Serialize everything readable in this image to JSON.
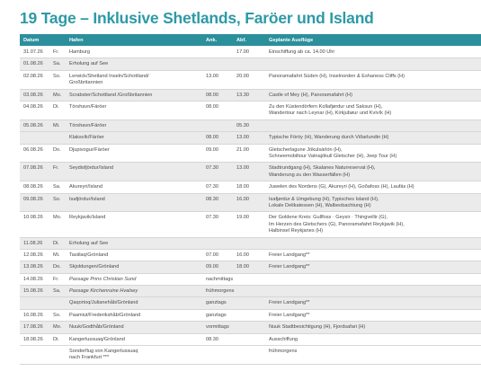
{
  "title": "19 Tage – Inklusive Shetlands, Faröer und Island",
  "header": {
    "date": "Datum",
    "port": "Hafen",
    "arr": "Ank.",
    "dep": "Abf.",
    "excursions": "Geplante Ausflüge"
  },
  "rows": [
    {
      "date": "31.07.26",
      "day": "Fr.",
      "port": [
        "Hamburg"
      ],
      "arr": "",
      "dep": "17.00",
      "exc": [
        "Einschiffung ab ca. 14.00 Uhr"
      ]
    },
    {
      "date": "01.08.26",
      "day": "Sa.",
      "port": [
        "Erholung auf See"
      ],
      "arr": "",
      "dep": "",
      "exc": []
    },
    {
      "date": "02.08.26",
      "day": "So.",
      "port": [
        "Lerwick/Shetland Inseln/Schottland/",
        "Großbritannien"
      ],
      "arr": "13.00",
      "dep": "20.00",
      "exc": [
        "Panoramafahrt Süden (H), Inselnorden & Eshaness Cliffs (H)"
      ]
    },
    {
      "date": "03.08.26",
      "day": "Mo.",
      "port": [
        "Scrabster/Schottland /Großbritannien"
      ],
      "arr": "08.00",
      "dep": "13.30",
      "exc": [
        "Castle of Mey (H), Panoramafahrt (H)"
      ]
    },
    {
      "date": "04.08.26",
      "day": "Di.",
      "port": [
        "Tórshavn/Färöer"
      ],
      "arr": "08.00",
      "dep": "",
      "exc": [
        "Zu den Küstendörfern Kollafjørdur und Saksun (H),",
        "Wandertour nach Leynar (H), Kirkjubøur und Kvívík (H)"
      ]
    },
    {
      "date": "05.08.26",
      "day": "Mi.",
      "port": [
        "Tórshavn/Färöer"
      ],
      "arr": "",
      "dep": "05.30",
      "exc": []
    },
    {
      "date": "",
      "day": "",
      "port": [
        "Klaksvík/Färöer"
      ],
      "arr": "08.00",
      "dep": "13.00",
      "exc": [
        "Typische Föröy (H), Wanderung durch Viðarlundin (H)"
      ]
    },
    {
      "date": "06.08.26",
      "day": "Do.",
      "port": [
        "Djupivogur/Färöer"
      ],
      "arr": "09.00",
      "dep": "21.00",
      "exc": [
        "Gletscherlagune Jökulsárlón (H),",
        "Schneemobiltour Vatnajökull Gletscher (H), Jeep Tour (H)"
      ]
    },
    {
      "date": "07.08.26",
      "day": "Fr.",
      "port": [
        "Seydisfjördur/Island"
      ],
      "arr": "07.30",
      "dep": "13.00",
      "exc": [
        "Stadtrundgang (H), Skalanes Naturreservat (H),",
        "Wanderung zu den Wasserfällen (H)"
      ]
    },
    {
      "date": "08.08.26",
      "day": "Sa.",
      "port": [
        "Akureyri/Island"
      ],
      "arr": "07.30",
      "dep": "18.00",
      "exc": [
        "Juwelen des Nordens (G), Akureyri (H), Goðafoss (H), Laufás (H)"
      ]
    },
    {
      "date": "09.08.26",
      "day": "So.",
      "port": [
        "Isafjördur/Island"
      ],
      "arr": "08.30",
      "dep": "16.00",
      "exc": [
        "Isafjørdur & Umgebung (H), Typisches Island (H),",
        "Lokale Delikatessen (H), Walbeobachtung (H)"
      ]
    },
    {
      "date": "10.08.26",
      "day": "Mo.",
      "port": [
        "Reykjavik/Island"
      ],
      "arr": "07.30",
      "dep": "19.00",
      "exc": [
        "Der Goldene Kreis: Gullfoss · Geysir · Thingvellir (G),",
        "Im Herzen des Gletschers (G), Panoramafahrt Reykjavik (H),",
        "Halbinsel Reykjanes (H)"
      ]
    },
    {
      "date": "11.08.26",
      "day": "Di.",
      "port": [
        "Erholung auf See"
      ],
      "arr": "",
      "dep": "",
      "exc": []
    },
    {
      "date": "12.08.26",
      "day": "Mi.",
      "port": [
        "Tasiilaq/Grönland"
      ],
      "arr": "07.00",
      "dep": "16.00",
      "exc": [
        "Freier Landgang**"
      ]
    },
    {
      "date": "13.08.26",
      "day": "Do.",
      "port": [
        "Skjoldungen/Grönland"
      ],
      "arr": "09.00",
      "dep": "18.00",
      "exc": [
        "Freier Landgang**"
      ]
    },
    {
      "date": "14.08.26",
      "day": "Fr.",
      "port": [
        "Passage Prins Christian Sund"
      ],
      "italic": true,
      "arr": "nachmittags",
      "dep": "",
      "exc": []
    },
    {
      "date": "15.08.26",
      "day": "Sa.",
      "port": [
        "Passage Kirchenruine Hvalsey"
      ],
      "italic": true,
      "arr": "frühmorgens",
      "dep": "",
      "exc": []
    },
    {
      "date": "",
      "day": "",
      "port": [
        "Qaqortoq/Julianehåb/Grönland"
      ],
      "arr": "ganztags",
      "dep": "",
      "exc": [
        "Freier Landgang**"
      ]
    },
    {
      "date": "16.08.26",
      "day": "So.",
      "port": [
        "Paamiut/Frederikshåb/Grönland"
      ],
      "arr": "ganztags",
      "dep": "",
      "exc": [
        "Freier Landgang**"
      ]
    },
    {
      "date": "17.08.26",
      "day": "Mo.",
      "port": [
        "Nuuk/Godthåb/Grönland"
      ],
      "arr": "vormittags",
      "dep": "",
      "exc": [
        "Nuuk Stadtbesichtigung (H), Fjordsafari (H)"
      ]
    },
    {
      "date": "18.08.26",
      "day": "Di.",
      "port": [
        "Kangerlussuaq/Grönland"
      ],
      "arr": "08.30",
      "dep": "",
      "exc": [
        "Ausschiffung"
      ]
    },
    {
      "date": "",
      "day": "",
      "port": [
        "Sonderflug von Kangerlussuaq",
        "nach Frankfurt ***"
      ],
      "arr": "",
      "dep": "",
      "exc": [
        "frühmorgens"
      ]
    }
  ]
}
